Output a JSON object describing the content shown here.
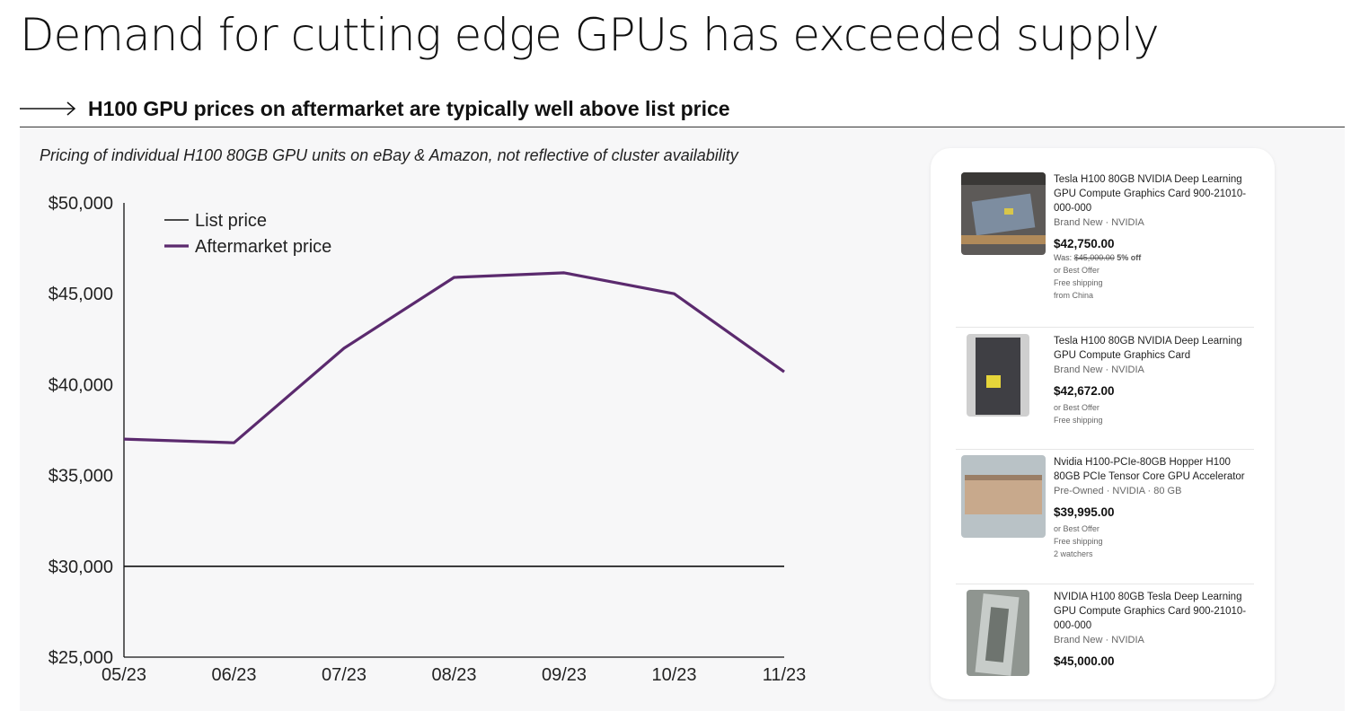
{
  "title": "Demand for cutting edge GPUs has exceeded supply",
  "subheader": "H100 GPU prices on aftermarket are typically well above list price",
  "caption": "Pricing of individual H100 80GB GPU units on eBay & Amazon, not reflective of cluster availability",
  "colors": {
    "aftermarket": "#5b2a6e",
    "list": "#111111",
    "axis": "#111111"
  },
  "chart_data": {
    "type": "line",
    "x": [
      "05/23",
      "06/23",
      "07/23",
      "08/23",
      "09/23",
      "10/23",
      "11/23"
    ],
    "series": [
      {
        "name": "List price",
        "values": [
          30000,
          30000,
          30000,
          30000,
          30000,
          30000,
          30000
        ],
        "color": "#111111"
      },
      {
        "name": "Aftermarket price",
        "values": [
          37000,
          36800,
          42000,
          45900,
          46150,
          45000,
          40700
        ],
        "color": "#5b2a6e"
      }
    ],
    "yticks": [
      "$50,000",
      "$45,000",
      "$40,000",
      "$35,000",
      "$30,000",
      "$25,000"
    ],
    "ytick_values": [
      50000,
      45000,
      40000,
      35000,
      30000,
      25000
    ],
    "ylim": [
      25000,
      50000
    ],
    "legend_position": "top-left",
    "grid": false
  },
  "listings": [
    {
      "title": "Tesla H100 80GB NVIDIA Deep Learning GPU Compute Graphics Card 900-21010-000-000",
      "condition": "Brand New · NVIDIA",
      "price": "$42,750.00",
      "was_label": "Was:",
      "was_price": "$45,000.00",
      "discount": "5% off",
      "extra": [
        "or Best Offer",
        "Free shipping",
        "from China"
      ],
      "thumb_icon": "gpu-in-box-photo"
    },
    {
      "title": "Tesla H100 80GB NVIDIA Deep Learning GPU Compute Graphics Card",
      "condition": "Brand New · NVIDIA",
      "price": "$42,672.00",
      "extra": [
        "or Best Offer",
        "Free shipping"
      ],
      "thumb_icon": "gpu-packaged-photo"
    },
    {
      "title": "Nvidia H100-PCIe-80GB Hopper H100 80GB PCIe Tensor Core GPU Accelerator",
      "condition": "Pre-Owned · NVIDIA · 80 GB",
      "price": "$39,995.00",
      "extra": [
        "or Best Offer",
        "Free shipping",
        "2 watchers"
      ],
      "thumb_icon": "gpu-card-photo"
    },
    {
      "title": "NVIDIA H100 80GB Tesla Deep Learning GPU Compute Graphics Card 900-21010-000-000",
      "condition": "Brand New · NVIDIA",
      "price": "$45,000.00",
      "extra": [],
      "thumb_icon": "gpu-in-bag-photo"
    }
  ]
}
